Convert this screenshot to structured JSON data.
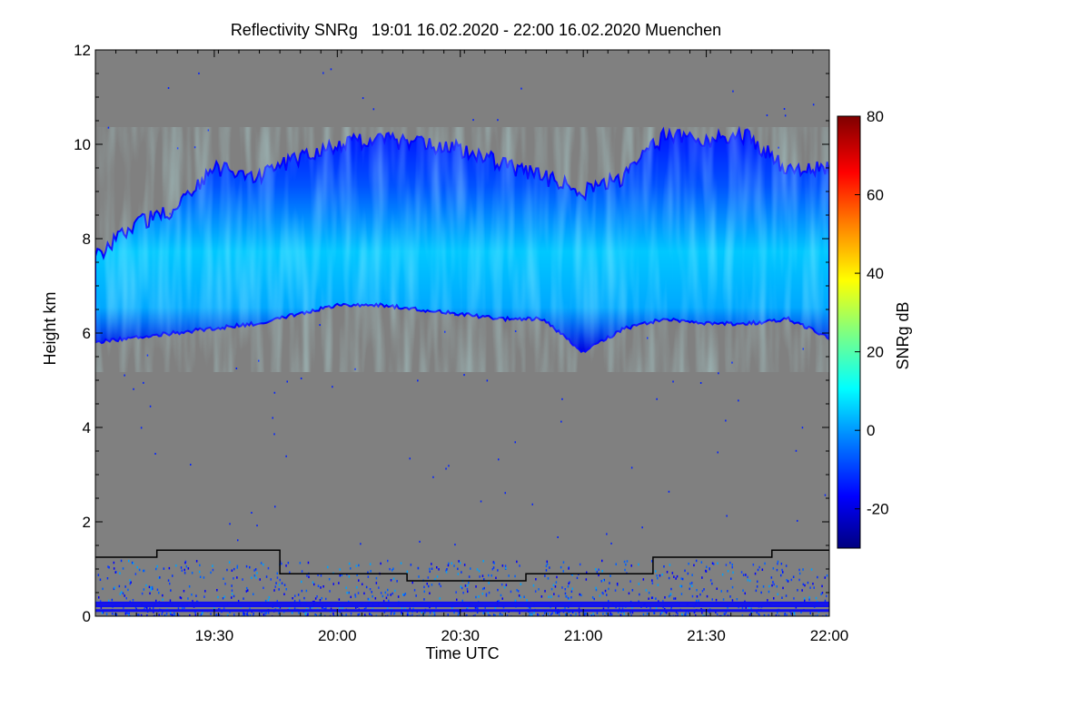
{
  "chart_data": {
    "type": "heatmap",
    "title": "Reflectivity SNRg   19:01 16.02.2020 - 22:00 16.02.2020 Muenchen",
    "xlabel": "Time UTC",
    "ylabel": "Height km",
    "colorbar_label": "SNRg dB",
    "xlim": [
      "19:01",
      "22:00"
    ],
    "ylim": [
      0,
      12
    ],
    "x_ticks": [
      "19:30",
      "20:00",
      "20:30",
      "21:00",
      "21:30",
      "22:00"
    ],
    "y_ticks": [
      0,
      2,
      4,
      6,
      8,
      10,
      12
    ],
    "colorbar_range": [
      -30,
      80
    ],
    "colorbar_ticks": [
      -20,
      0,
      20,
      40,
      60,
      80
    ],
    "background_color": "#808080",
    "colormap": [
      "#00007f",
      "#0000ff",
      "#0080ff",
      "#00ffff",
      "#80ff80",
      "#ffff00",
      "#ff8000",
      "#ff0000",
      "#7f0000"
    ],
    "cloud_layer": {
      "time": [
        "19:01",
        "19:10",
        "19:20",
        "19:30",
        "19:40",
        "19:50",
        "20:00",
        "20:10",
        "20:20",
        "20:30",
        "20:40",
        "20:50",
        "21:00",
        "21:10",
        "21:20",
        "21:30",
        "21:40",
        "21:50",
        "22:00"
      ],
      "base_km": [
        5.8,
        5.9,
        6.0,
        6.1,
        6.2,
        6.4,
        6.6,
        6.6,
        6.5,
        6.4,
        6.3,
        6.3,
        5.6,
        6.1,
        6.3,
        6.2,
        6.2,
        6.3,
        5.9
      ],
      "top_km": [
        7.6,
        8.3,
        8.6,
        9.5,
        9.3,
        9.7,
        10.0,
        10.1,
        10.0,
        9.9,
        9.6,
        9.3,
        9.0,
        9.3,
        10.2,
        10.1,
        10.2,
        9.4,
        9.5
      ],
      "peak_snr_db": 8
    },
    "boundary_layer_line": {
      "color": "#000000",
      "time": [
        "19:01",
        "19:16",
        "19:16",
        "19:46",
        "19:46",
        "20:17",
        "20:17",
        "20:46",
        "20:46",
        "21:17",
        "21:17",
        "21:46",
        "21:46",
        "22:00"
      ],
      "height_km": [
        1.25,
        1.25,
        1.4,
        1.4,
        0.9,
        0.9,
        0.75,
        0.75,
        0.9,
        0.9,
        1.25,
        1.25,
        1.4,
        1.4
      ]
    }
  }
}
